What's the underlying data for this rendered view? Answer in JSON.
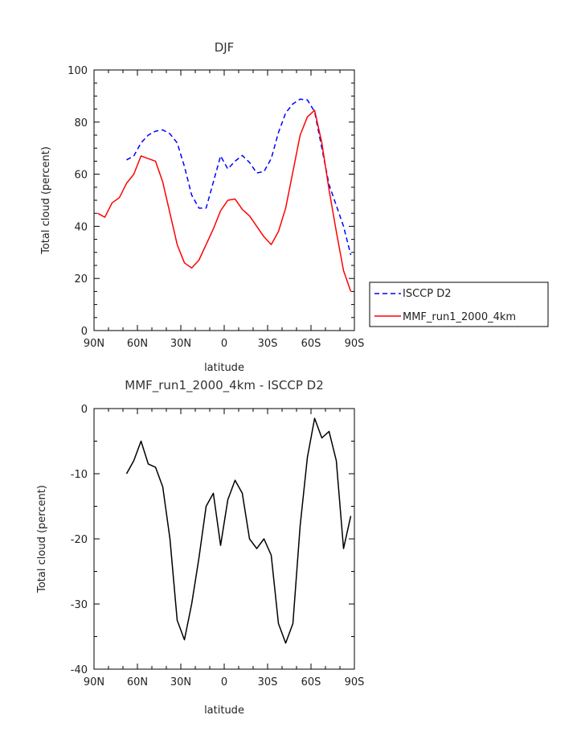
{
  "chart_data": [
    {
      "type": "line",
      "title": "DJF",
      "xlabel": "latitude",
      "ylabel": "Total cloud (percent)",
      "x_ticks": [
        -90,
        -60,
        -30,
        0,
        30,
        60,
        90
      ],
      "x_tick_labels": [
        "90N",
        "60N",
        "30N",
        "0",
        "30S",
        "60S",
        "90S"
      ],
      "y_ticks": [
        0,
        20,
        40,
        60,
        80,
        100
      ],
      "ylim": [
        0,
        100
      ],
      "xlim": [
        -90,
        90
      ],
      "legend": "right",
      "series": [
        {
          "name": "ISCCP D2",
          "color": "#0000ff",
          "dash": "dashed",
          "x": [
            -67.5,
            -62.5,
            -57.5,
            -52.5,
            -47.5,
            -42.5,
            -37.5,
            -32.5,
            -27.5,
            -22.5,
            -17.5,
            -12.5,
            -7.5,
            -2.5,
            2.5,
            7.5,
            12.5,
            17.5,
            22.5,
            27.5,
            32.5,
            37.5,
            42.5,
            47.5,
            52.5,
            57.5,
            62.5,
            67.5,
            72.5,
            77.5,
            82.5,
            87.5
          ],
          "y": [
            65.5,
            67,
            72,
            75,
            76.5,
            77,
            75.5,
            72,
            63,
            52,
            47,
            47,
            57,
            67,
            62,
            65,
            67.2,
            64.5,
            60.5,
            61,
            66,
            76,
            83.5,
            87,
            88.8,
            88.5,
            84,
            70,
            56,
            48,
            40,
            29
          ]
        },
        {
          "name": "MMF_run1_2000_4km",
          "color": "#ff0000",
          "dash": "solid",
          "x": [
            -87.5,
            -82.5,
            -77.5,
            -72.5,
            -67.5,
            -62.5,
            -57.5,
            -52.5,
            -47.5,
            -42.5,
            -37.5,
            -32.5,
            -27.5,
            -22.5,
            -17.5,
            -12.5,
            -7.5,
            -2.5,
            2.5,
            7.5,
            12.5,
            17.5,
            22.5,
            27.5,
            32.5,
            37.5,
            42.5,
            47.5,
            52.5,
            57.5,
            62.5,
            67.5,
            72.5,
            77.5,
            82.5,
            87.5
          ],
          "y": [
            45,
            43.5,
            49,
            51,
            56.5,
            60,
            67,
            66,
            65,
            57,
            45,
            33,
            26,
            24,
            27,
            33,
            39,
            46,
            50,
            50.5,
            46.5,
            44,
            40,
            36,
            33,
            38,
            47,
            61,
            75,
            82,
            84.5,
            72,
            54,
            38,
            23,
            15
          ]
        }
      ]
    },
    {
      "type": "line",
      "title": "MMF_run1_2000_4km - ISCCP D2",
      "xlabel": "latitude",
      "ylabel": "Total cloud (percent)",
      "x_ticks": [
        -90,
        -60,
        -30,
        0,
        30,
        60,
        90
      ],
      "x_tick_labels": [
        "90N",
        "60N",
        "30N",
        "0",
        "30S",
        "60S",
        "90S"
      ],
      "y_ticks": [
        -40,
        -30,
        -20,
        -10,
        0
      ],
      "ylim": [
        -40,
        0
      ],
      "xlim": [
        -90,
        90
      ],
      "series": [
        {
          "color": "#000000",
          "dash": "solid",
          "x": [
            -67.5,
            -62.5,
            -57.5,
            -52.5,
            -47.5,
            -42.5,
            -37.5,
            -32.5,
            -27.5,
            -22.5,
            -17.5,
            -12.5,
            -7.5,
            -2.5,
            2.5,
            7.5,
            12.5,
            17.5,
            22.5,
            27.5,
            32.5,
            37.5,
            42.5,
            47.5,
            52.5,
            57.5,
            62.5,
            67.5,
            72.5,
            77.5,
            82.5,
            87.5
          ],
          "y": [
            -10,
            -8,
            -5,
            -8.5,
            -9,
            -12,
            -20,
            -32.5,
            -35.5,
            -30,
            -23,
            -15,
            -13,
            -21,
            -14,
            -11,
            -13,
            -20,
            -21.5,
            -20,
            -22.5,
            -33,
            -36,
            -33,
            -18,
            -7.5,
            -1.5,
            -4.5,
            -3.5,
            -8,
            -21.5,
            -16.5
          ]
        }
      ]
    }
  ],
  "legend": {
    "items": [
      {
        "label": "ISCCP D2",
        "color": "#0000ff",
        "dash": "dashed"
      },
      {
        "label": "MMF_run1_2000_4km",
        "color": "#ff0000",
        "dash": "solid"
      }
    ]
  }
}
